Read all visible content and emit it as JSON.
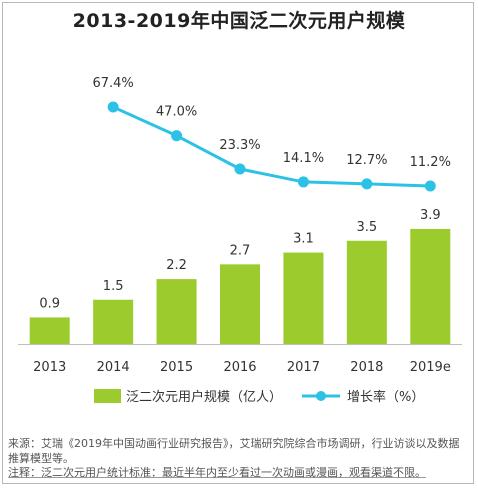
{
  "title": "2013-2019年中国泛二次元用户规模",
  "chart_data": {
    "type": "bar",
    "categories": [
      "2013",
      "2014",
      "2015",
      "2016",
      "2017",
      "2018",
      "2019e"
    ],
    "series": [
      {
        "name": "泛二次元用户规模（亿人）",
        "type": "bar",
        "values": [
          0.9,
          1.5,
          2.2,
          2.7,
          3.1,
          3.5,
          3.9
        ],
        "labels": [
          "0.9",
          "1.5",
          "2.2",
          "2.7",
          "3.1",
          "3.5",
          "3.9"
        ]
      },
      {
        "name": "增长率（%）",
        "type": "line",
        "values": [
          null,
          67.4,
          47.0,
          23.3,
          14.1,
          12.7,
          11.2
        ],
        "labels": [
          "",
          "67.4%",
          "47.0%",
          "23.3%",
          "14.1%",
          "12.7%",
          "11.2%"
        ]
      }
    ],
    "legend": "bottom",
    "colors": {
      "bar": "#9ccb2e",
      "line": "#2cc2e6"
    }
  },
  "notes": {
    "source": "来源：艾瑞《2019年中国动画行业研究报告》，艾瑞研究院综合市场调研，行业访谈以及数据推算模型等。",
    "definition": "注释：泛二次元用户统计标准：最近半年内至少看过一次动画或漫画，观看渠道不限。"
  }
}
